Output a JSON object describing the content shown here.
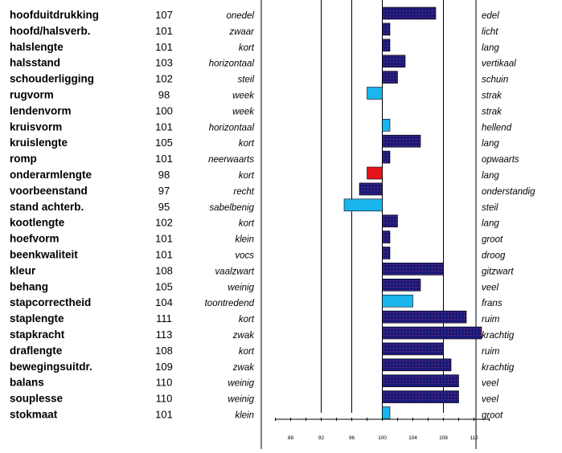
{
  "chart_data": {
    "type": "bar",
    "orientation": "horizontal",
    "baseline": 100,
    "xlim": [
      86,
      114
    ],
    "xticks": [
      88,
      92,
      96,
      100,
      104,
      108,
      112
    ],
    "grid_lines": [
      92,
      96,
      108
    ],
    "categories": [
      "hoofduitdrukking",
      "hoofd/halsverb.",
      "halslengte",
      "halsstand",
      "schouderligging",
      "rugvorm",
      "lendenvorm",
      "kruisvorm",
      "kruislengte",
      "romp",
      "onderarmlengte",
      "voorbeenstand",
      "stand achterb.",
      "kootlengte",
      "hoefvorm",
      "beenkwaliteit",
      "kleur",
      "behang",
      "stapcorrectheid",
      "staplengte",
      "stapkracht",
      "draflengte",
      "bewegingsuitdr.",
      "balans",
      "souplesse",
      "stokmaat"
    ],
    "values": [
      107,
      101,
      101,
      103,
      102,
      98,
      100,
      101,
      105,
      101,
      98,
      97,
      95,
      102,
      101,
      101,
      108,
      105,
      104,
      111,
      113,
      108,
      109,
      110,
      110,
      101
    ],
    "left_labels": [
      "onedel",
      "zwaar",
      "kort",
      "horizontaal",
      "steil",
      "week",
      "week",
      "horizontaal",
      "kort",
      "neerwaarts",
      "kort",
      "recht",
      "sabelbenig",
      "kort",
      "klein",
      "vocs",
      "vaalzwart",
      "weinig",
      "toontredend",
      "kort",
      "zwak",
      "kort",
      "zwak",
      "weinig",
      "weinig",
      "klein"
    ],
    "right_labels": [
      "edel",
      "licht",
      "lang",
      "vertikaal",
      "schuin",
      "strak",
      "strak",
      "hellend",
      "lang",
      "opwaarts",
      "lang",
      "onderstandig",
      "steil",
      "lang",
      "groot",
      "droog",
      "gitzwart",
      "veel",
      "frans",
      "ruim",
      "krachtig",
      "ruim",
      "krachtig",
      "veel",
      "veel",
      "groot"
    ],
    "bar_colors": [
      "navy",
      "navy",
      "navy",
      "navy",
      "navy",
      "lightblue",
      "navy",
      "lightblue",
      "navy",
      "navy",
      "red",
      "navy",
      "lightblue",
      "navy",
      "navy",
      "navy",
      "navy",
      "navy",
      "lightblue",
      "navy",
      "navy",
      "navy",
      "navy",
      "navy",
      "navy",
      "lightblue"
    ],
    "palette": {
      "navy": "#1a1a7a",
      "lightblue": "#19b6ee",
      "red": "#e8121a",
      "dot": "#c33b5a"
    }
  }
}
